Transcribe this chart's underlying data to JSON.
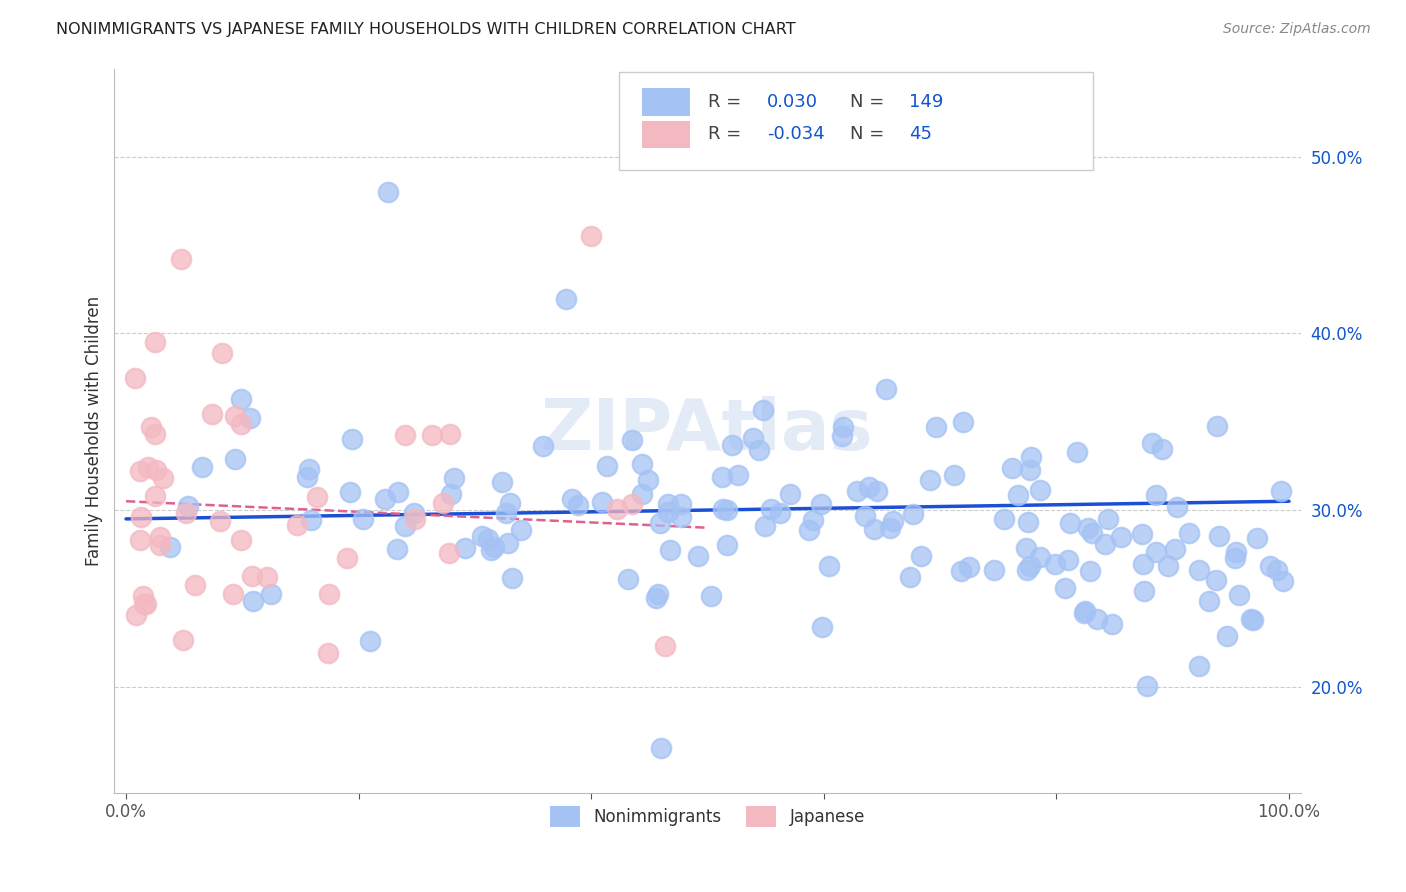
{
  "title": "NONIMMIGRANTS VS JAPANESE FAMILY HOUSEHOLDS WITH CHILDREN CORRELATION CHART",
  "source": "Source: ZipAtlas.com",
  "ylabel": "Family Households with Children",
  "legend_nonimmigrants": "Nonimmigrants",
  "legend_japanese": "Japanese",
  "r_nonimmigrants": "0.030",
  "n_nonimmigrants": "149",
  "r_japanese": "-0.034",
  "n_japanese": "45",
  "blue_color": "#a4c2f4",
  "pink_color": "#f4b8c1",
  "line_blue": "#1a4fd6",
  "line_pink": "#e06090",
  "text_blue": "#1155cc",
  "text_dark": "#444444",
  "background": "#ffffff",
  "grid_color": "#cccccc",
  "watermark": "ZIPAtlas",
  "xlim": [
    0,
    100
  ],
  "ylim": [
    14,
    55
  ],
  "yticks": [
    20,
    30,
    40,
    50
  ],
  "ytick_labels": [
    "20.0%",
    "30.0%",
    "40.0%",
    "50.0%"
  ]
}
